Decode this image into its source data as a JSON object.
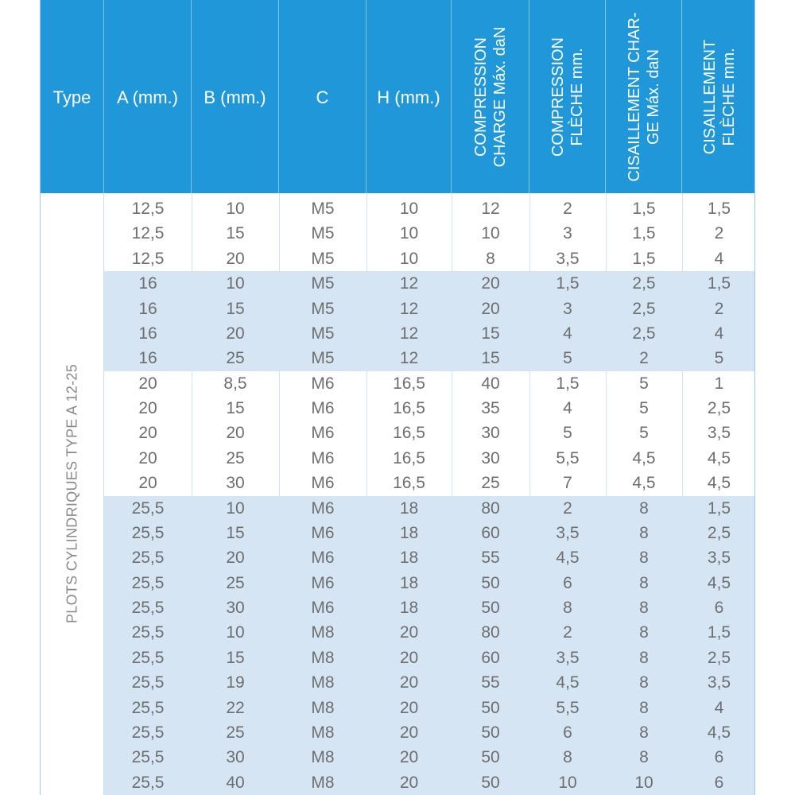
{
  "table": {
    "headers": [
      {
        "key": "type",
        "label": "Type"
      },
      {
        "key": "a",
        "label": "A (mm.)"
      },
      {
        "key": "b",
        "label": "B (mm.)"
      },
      {
        "key": "c",
        "label": "C"
      },
      {
        "key": "h",
        "label": "H (mm.)"
      },
      {
        "key": "comp_charge",
        "lines": [
          "COMPRESSION",
          "CHARGE Máx. daN"
        ]
      },
      {
        "key": "comp_fleche",
        "lines": [
          "COMPRESSION",
          "FLÈCHE mm."
        ]
      },
      {
        "key": "cis_charge",
        "lines": [
          "CISAILLEMENT CHAR-",
          "GE Máx. daN"
        ]
      },
      {
        "key": "cis_fleche",
        "lines": [
          "CISAILLEMENT",
          "FLÈCHE mm."
        ]
      }
    ],
    "type_label": "PLOTS CYLINDRIQUES TYPE A 12-25",
    "groups": [
      {
        "shaded": false,
        "rows": [
          [
            "12,5",
            "10",
            "M5",
            "10",
            "12",
            "2",
            "1,5",
            "1,5"
          ],
          [
            "12,5",
            "15",
            "M5",
            "10",
            "10",
            "3",
            "1,5",
            "2"
          ],
          [
            "12,5",
            "20",
            "M5",
            "10",
            "8",
            "3,5",
            "1,5",
            "4"
          ]
        ]
      },
      {
        "shaded": true,
        "rows": [
          [
            "16",
            "10",
            "M5",
            "12",
            "20",
            "1,5",
            "2,5",
            "1,5"
          ],
          [
            "16",
            "15",
            "M5",
            "12",
            "20",
            "3",
            "2,5",
            "2"
          ],
          [
            "16",
            "20",
            "M5",
            "12",
            "15",
            "4",
            "2,5",
            "4"
          ],
          [
            "16",
            "25",
            "M5",
            "12",
            "15",
            "5",
            "2",
            "5"
          ]
        ]
      },
      {
        "shaded": false,
        "rows": [
          [
            "20",
            "8,5",
            "M6",
            "16,5",
            "40",
            "1,5",
            "5",
            "1"
          ],
          [
            "20",
            "15",
            "M6",
            "16,5",
            "35",
            "4",
            "5",
            "2,5"
          ],
          [
            "20",
            "20",
            "M6",
            "16,5",
            "30",
            "5",
            "5",
            "3,5"
          ],
          [
            "20",
            "25",
            "M6",
            "16,5",
            "30",
            "5,5",
            "4,5",
            "4,5"
          ],
          [
            "20",
            "30",
            "M6",
            "16,5",
            "25",
            "7",
            "4,5",
            "4,5"
          ]
        ]
      },
      {
        "shaded": true,
        "rows": [
          [
            "25,5",
            "10",
            "M6",
            "18",
            "80",
            "2",
            "8",
            "1,5"
          ],
          [
            "25,5",
            "15",
            "M6",
            "18",
            "60",
            "3,5",
            "8",
            "2,5"
          ],
          [
            "25,5",
            "20",
            "M6",
            "18",
            "55",
            "4,5",
            "8",
            "3,5"
          ],
          [
            "25,5",
            "25",
            "M6",
            "18",
            "50",
            "6",
            "8",
            "4,5"
          ],
          [
            "25,5",
            "30",
            "M6",
            "18",
            "50",
            "8",
            "8",
            "6"
          ],
          [
            "25,5",
            "10",
            "M8",
            "20",
            "80",
            "2",
            "8",
            "1,5"
          ],
          [
            "25,5",
            "15",
            "M8",
            "20",
            "60",
            "3,5",
            "8",
            "2,5"
          ],
          [
            "25,5",
            "19",
            "M8",
            "20",
            "55",
            "4,5",
            "8",
            "3,5"
          ],
          [
            "25,5",
            "22",
            "M8",
            "20",
            "50",
            "5,5",
            "8",
            "4"
          ],
          [
            "25,5",
            "25",
            "M8",
            "20",
            "50",
            "6",
            "8",
            "4,5"
          ],
          [
            "25,5",
            "30",
            "M8",
            "20",
            "50",
            "8",
            "8",
            "6"
          ],
          [
            "25,5",
            "40",
            "M8",
            "20",
            "50",
            "10",
            "10",
            "6"
          ]
        ]
      }
    ]
  },
  "colors": {
    "header_bg": "#1f97d9",
    "shaded_row": "#d6e5f4",
    "text": "#6e6e6e"
  }
}
